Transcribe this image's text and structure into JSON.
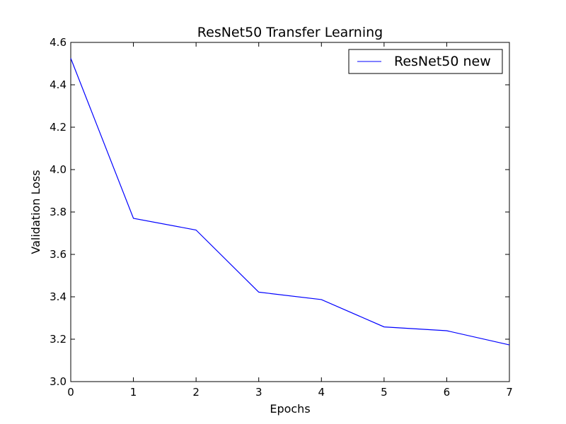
{
  "chart_data": {
    "type": "line",
    "title": "ResNet50 Transfer Learning",
    "xlabel": "Epochs",
    "ylabel": "Validation Loss",
    "xlim": [
      0,
      7
    ],
    "ylim": [
      3.0,
      4.6
    ],
    "xticks": [
      0,
      1,
      2,
      3,
      4,
      5,
      6,
      7
    ],
    "xtick_labels": [
      "0",
      "1",
      "2",
      "3",
      "4",
      "5",
      "6",
      "7"
    ],
    "yticks": [
      3.0,
      3.2,
      3.4,
      3.6,
      3.8,
      4.0,
      4.2,
      4.4,
      4.6
    ],
    "ytick_labels": [
      "3.0",
      "3.2",
      "3.4",
      "3.6",
      "3.8",
      "4.0",
      "4.2",
      "4.4",
      "4.6"
    ],
    "grid": false,
    "legend_position": "top-right",
    "series": [
      {
        "name": "ResNet50 new",
        "color": "#0000ff",
        "x": [
          0,
          1,
          2,
          3,
          4,
          5,
          6,
          7
        ],
        "y": [
          4.525,
          3.77,
          3.715,
          3.422,
          3.387,
          3.258,
          3.24,
          3.173
        ]
      }
    ]
  }
}
